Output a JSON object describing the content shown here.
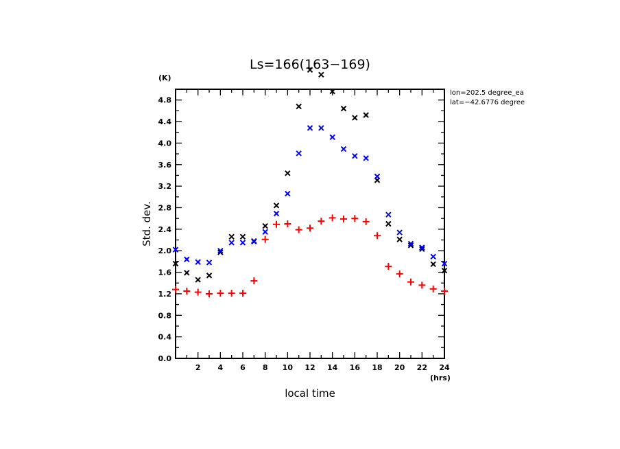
{
  "chart_data": {
    "type": "scatter",
    "title": "Ls=166(163−169)",
    "xlabel": "local time",
    "ylabel": "Std. dev.",
    "x_unit": "(hrs)",
    "y_unit": "(K)",
    "xlim": [
      0,
      24
    ],
    "ylim": [
      0,
      5.0
    ],
    "x_major_ticks": [
      2,
      4,
      6,
      8,
      10,
      12,
      14,
      16,
      18,
      20,
      22,
      24
    ],
    "x_minor_step": 1,
    "y_major_ticks": [
      "0.0",
      "0.4",
      "0.8",
      "1.2",
      "1.6",
      "2.0",
      "2.4",
      "2.8",
      "3.2",
      "3.6",
      "4.0",
      "4.4",
      "4.8"
    ],
    "y_minor_step": 0.2,
    "grid": false,
    "annotations": [
      "lon=202.5 degree_ea",
      "lat=−42.6776 degree"
    ],
    "x": [
      0,
      1,
      2,
      3,
      4,
      5,
      6,
      7,
      8,
      9,
      10,
      11,
      12,
      13,
      14,
      15,
      16,
      17,
      18,
      19,
      20,
      21,
      22,
      23,
      24
    ],
    "series": [
      {
        "name": "black x",
        "marker": "x",
        "color": "#000000",
        "values": [
          1.76,
          1.59,
          1.46,
          1.54,
          1.97,
          2.26,
          2.26,
          2.18,
          2.46,
          2.84,
          3.44,
          4.68,
          5.36,
          5.27,
          4.96,
          4.64,
          4.47,
          4.52,
          3.31,
          2.5,
          2.21,
          2.1,
          2.03,
          1.75,
          1.63
        ]
      },
      {
        "name": "blue x",
        "marker": "x",
        "color": "#0000ff",
        "values": [
          2.02,
          1.84,
          1.79,
          1.78,
          2.0,
          2.15,
          2.15,
          2.17,
          2.35,
          2.69,
          3.06,
          3.81,
          4.28,
          4.28,
          4.11,
          3.89,
          3.76,
          3.72,
          3.38,
          2.67,
          2.34,
          2.13,
          2.06,
          1.89,
          1.76
        ]
      },
      {
        "name": "red plus",
        "marker": "+",
        "color": "#ff0000",
        "values": [
          1.28,
          1.25,
          1.23,
          1.2,
          1.21,
          1.21,
          1.21,
          1.44,
          2.21,
          2.49,
          2.5,
          2.39,
          2.42,
          2.55,
          2.61,
          2.59,
          2.6,
          2.54,
          2.28,
          1.71,
          1.57,
          1.42,
          1.36,
          1.29,
          1.25
        ]
      }
    ]
  }
}
